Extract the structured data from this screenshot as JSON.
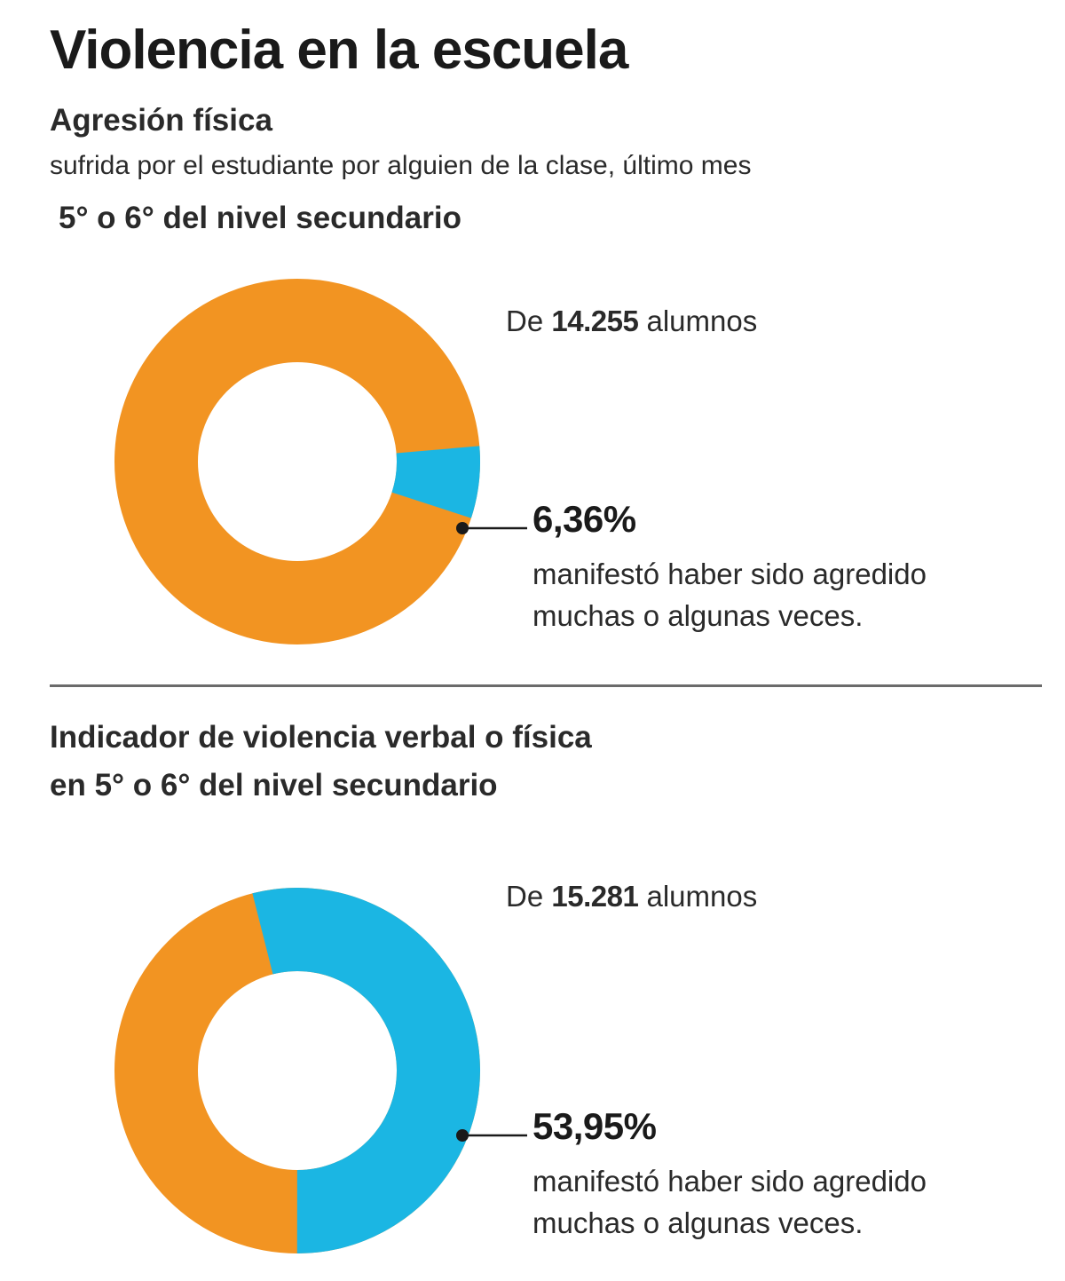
{
  "header": {
    "title": "Violencia en la escuela",
    "subtitle": "Agresión física",
    "description": "sufrida por el estudiante por alguien de la clase, último mes",
    "level": "5° o 6° del nivel secundario"
  },
  "section2": {
    "title_line1": "Indicador de violencia verbal o física",
    "title_line2": "en 5° o 6° del nivel secundario"
  },
  "colors": {
    "highlight": "#1bb6e3",
    "rest": "#f29422",
    "divider": "#6b6b6b"
  },
  "chart_data": [
    {
      "type": "pie",
      "style": "donut",
      "total_prefix": "De",
      "total_value": "14.255",
      "total_suffix": "alumnos",
      "highlight_value": 6.36,
      "highlight_label": "6,36%",
      "note_line1": "manifestó haber sido agredido",
      "note_line2": "muchas o algunas veces."
    },
    {
      "type": "pie",
      "style": "donut",
      "total_prefix": "De",
      "total_value": "15.281",
      "total_suffix": "alumnos",
      "highlight_value": 53.95,
      "highlight_label": "53,95%",
      "note_line1": "manifestó haber sido agredido",
      "note_line2": "muchas o algunas veces."
    }
  ]
}
